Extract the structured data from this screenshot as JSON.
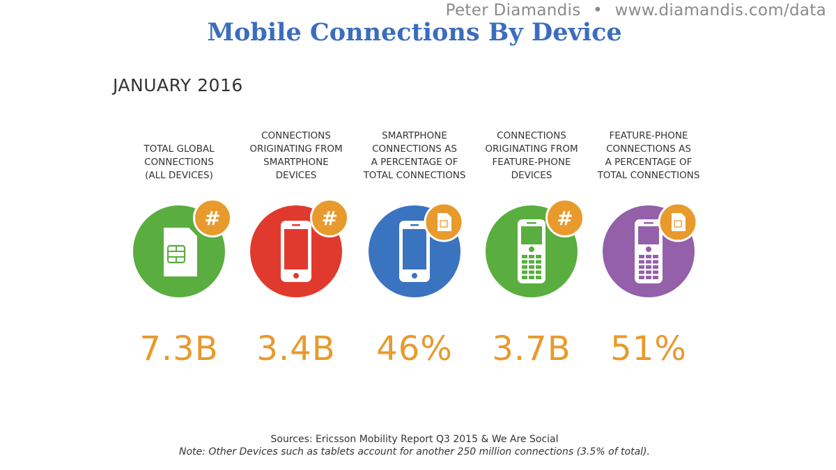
{
  "header": {
    "credit_name": "Peter Diamandis",
    "credit_sep": "•",
    "credit_url": "www.diamandis.com/data",
    "title": "Mobile Connections By Device",
    "subtitle": "JANUARY 2016"
  },
  "colors": {
    "title": "#3b6dbf",
    "value": "#e89a2c",
    "badge": "#e89a2c",
    "green": "#5aad3f",
    "red": "#e03a2f",
    "blue": "#3a73bf",
    "purple": "#9460a9"
  },
  "chart_data": {
    "type": "table",
    "title": "Mobile Connections By Device",
    "subtitle": "JANUARY 2016",
    "items": [
      {
        "label": "TOTAL GLOBAL CONNECTIONS (ALL DEVICES)",
        "value": "7.3B",
        "circle_color": "#5aad3f",
        "icon": "sim-card-icon",
        "badge": "hash"
      },
      {
        "label": "CONNECTIONS ORIGINATING FROM SMARTPHONE DEVICES",
        "value": "3.4B",
        "circle_color": "#e03a2f",
        "icon": "smartphone-icon",
        "badge": "hash"
      },
      {
        "label": "SMARTPHONE CONNECTIONS AS A PERCENTAGE OF TOTAL CONNECTIONS",
        "value": "46%",
        "circle_color": "#3a73bf",
        "icon": "smartphone-icon",
        "badge": "sim"
      },
      {
        "label": "CONNECTIONS ORIGINATING FROM FEATURE-PHONE DEVICES",
        "value": "3.7B",
        "circle_color": "#5aad3f",
        "icon": "feature-phone-icon",
        "badge": "hash"
      },
      {
        "label": "FEATURE-PHONE CONNECTIONS AS A PERCENTAGE OF TOTAL CONNECTIONS",
        "value": "51%",
        "circle_color": "#9460a9",
        "icon": "feature-phone-icon",
        "badge": "sim"
      }
    ]
  },
  "columns": [
    {
      "label_lines": [
        "TOTAL GLOBAL",
        "CONNECTIONS",
        "(ALL DEVICES)"
      ]
    },
    {
      "label_lines": [
        "CONNECTIONS",
        "ORIGINATING FROM",
        "SMARTPHONE",
        "DEVICES"
      ]
    },
    {
      "label_lines": [
        "SMARTPHONE",
        "CONNECTIONS AS",
        "A PERCENTAGE OF",
        "TOTAL CONNECTIONS"
      ]
    },
    {
      "label_lines": [
        "CONNECTIONS",
        "ORIGINATING FROM",
        "FEATURE-PHONE",
        "DEVICES"
      ]
    },
    {
      "label_lines": [
        "FEATURE-PHONE",
        "CONNECTIONS AS",
        "A PERCENTAGE OF",
        "TOTAL CONNECTIONS"
      ]
    }
  ],
  "badge_hash": "#",
  "footer": {
    "sources": "Sources: Ericsson Mobility Report Q3 2015 & We Are Social",
    "note": "Note: Other Devices such as tablets account for another 250 million connections (3.5% of total)."
  }
}
